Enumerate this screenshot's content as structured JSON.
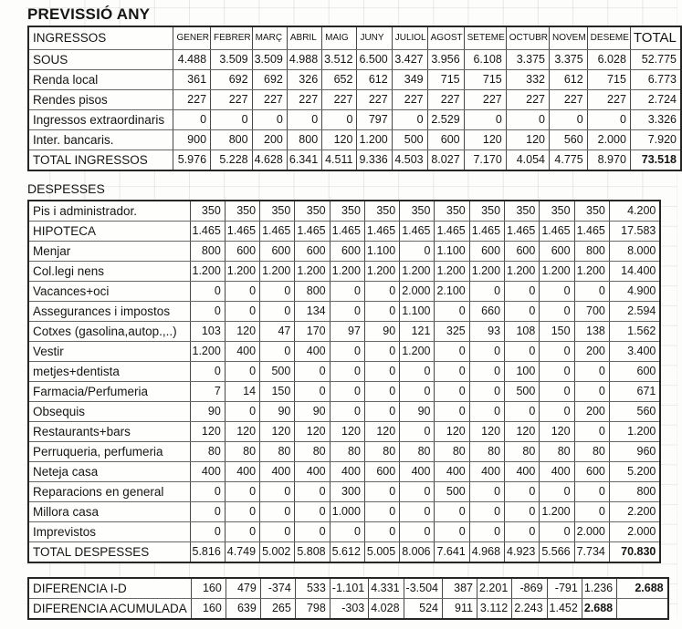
{
  "title": "PREVISSIÓ ANY",
  "columns": [
    "GENER",
    "FEBRER",
    "MARÇ",
    "ABRIL",
    "MAIG",
    "JUNY",
    "JULIOL",
    "AGOST",
    "SETEME",
    "OCTUBR",
    "NOVEM",
    "DESEME",
    "TOTAL"
  ],
  "ingressos": {
    "header_label": "INGRESSOS",
    "rows": [
      {
        "label": "SOUS",
        "values": [
          "4.488",
          "3.509",
          "3.509",
          "4.988",
          "3.512",
          "6.500",
          "3.427",
          "3.956",
          "6.108",
          "3.375",
          "3.375",
          "6.028",
          "52.775"
        ]
      },
      {
        "label": "Renda local",
        "values": [
          "361",
          "692",
          "692",
          "326",
          "652",
          "612",
          "349",
          "715",
          "715",
          "332",
          "612",
          "715",
          "6.773"
        ]
      },
      {
        "label": "Rendes pisos",
        "values": [
          "227",
          "227",
          "227",
          "227",
          "227",
          "227",
          "227",
          "227",
          "227",
          "227",
          "227",
          "227",
          "2.724"
        ]
      },
      {
        "label": "Ingressos extraordinaris",
        "values": [
          "0",
          "0",
          "0",
          "0",
          "0",
          "797",
          "0",
          "2.529",
          "0",
          "0",
          "0",
          "0",
          "3.326"
        ]
      },
      {
        "label": "Inter. bancaris.",
        "values": [
          "900",
          "800",
          "200",
          "800",
          "120",
          "1.200",
          "500",
          "600",
          "120",
          "120",
          "560",
          "2.000",
          "7.920"
        ]
      }
    ],
    "total": {
      "label": "TOTAL INGRESSOS",
      "values": [
        "5.976",
        "5.228",
        "4.628",
        "6.341",
        "4.511",
        "9.336",
        "4.503",
        "8.027",
        "7.170",
        "4.054",
        "4.775",
        "8.970",
        "73.518"
      ],
      "bold": [
        12
      ]
    }
  },
  "despesses": {
    "section_label": "DESPESSES",
    "rows": [
      {
        "label": "Pis i administrador.",
        "values": [
          "350",
          "350",
          "350",
          "350",
          "350",
          "350",
          "350",
          "350",
          "350",
          "350",
          "350",
          "350",
          "4.200"
        ]
      },
      {
        "label": "HIPOTECA",
        "values": [
          "1.465",
          "1.465",
          "1.465",
          "1.465",
          "1.465",
          "1.465",
          "1.465",
          "1.465",
          "1.465",
          "1.465",
          "1.465",
          "1.465",
          "17.583"
        ]
      },
      {
        "label": "Menjar",
        "values": [
          "800",
          "600",
          "600",
          "600",
          "600",
          "1.100",
          "0",
          "1.100",
          "600",
          "600",
          "600",
          "800",
          "8.000"
        ]
      },
      {
        "label": "Col.legi nens",
        "values": [
          "1.200",
          "1.200",
          "1.200",
          "1.200",
          "1.200",
          "1.200",
          "1.200",
          "1.200",
          "1.200",
          "1.200",
          "1.200",
          "1.200",
          "14.400"
        ]
      },
      {
        "label": "Vacances+oci",
        "values": [
          "0",
          "0",
          "0",
          "800",
          "0",
          "0",
          "2.000",
          "2.100",
          "0",
          "0",
          "0",
          "0",
          "4.900"
        ]
      },
      {
        "label": "Assegurances i impostos",
        "values": [
          "0",
          "0",
          "0",
          "134",
          "0",
          "0",
          "1.100",
          "0",
          "660",
          "0",
          "0",
          "700",
          "2.594"
        ]
      },
      {
        "label": "Cotxes (gasolina,autop.,..)",
        "values": [
          "103",
          "120",
          "47",
          "170",
          "97",
          "90",
          "121",
          "325",
          "93",
          "108",
          "150",
          "138",
          "1.562"
        ]
      },
      {
        "label": "Vestir",
        "values": [
          "1.200",
          "400",
          "0",
          "400",
          "0",
          "0",
          "1.200",
          "0",
          "0",
          "0",
          "0",
          "200",
          "3.400"
        ]
      },
      {
        "label": "metjes+dentista",
        "values": [
          "0",
          "0",
          "500",
          "0",
          "0",
          "0",
          "0",
          "0",
          "0",
          "100",
          "0",
          "0",
          "600"
        ]
      },
      {
        "label": "Farmacia/Perfumeria",
        "values": [
          "7",
          "14",
          "150",
          "0",
          "0",
          "0",
          "0",
          "0",
          "0",
          "500",
          "0",
          "0",
          "671"
        ]
      },
      {
        "label": "Obsequis",
        "values": [
          "90",
          "0",
          "90",
          "90",
          "0",
          "0",
          "90",
          "0",
          "0",
          "0",
          "0",
          "200",
          "560"
        ]
      },
      {
        "label": "Restaurants+bars",
        "values": [
          "120",
          "120",
          "120",
          "120",
          "120",
          "120",
          "0",
          "120",
          "120",
          "120",
          "120",
          "0",
          "1.200"
        ]
      },
      {
        "label": "Perruqueria, perfumeria",
        "values": [
          "80",
          "80",
          "80",
          "80",
          "80",
          "80",
          "80",
          "80",
          "80",
          "80",
          "80",
          "80",
          "960"
        ]
      },
      {
        "label": "Neteja casa",
        "values": [
          "400",
          "400",
          "400",
          "400",
          "400",
          "600",
          "400",
          "400",
          "400",
          "400",
          "400",
          "600",
          "5.200"
        ]
      },
      {
        "label": "Reparacions en general",
        "values": [
          "0",
          "0",
          "0",
          "0",
          "300",
          "0",
          "0",
          "500",
          "0",
          "0",
          "0",
          "0",
          "800"
        ]
      },
      {
        "label": "Millora casa",
        "values": [
          "0",
          "0",
          "0",
          "0",
          "1.000",
          "0",
          "0",
          "0",
          "0",
          "0",
          "1.200",
          "0",
          "2.200"
        ]
      },
      {
        "label": "Imprevistos",
        "values": [
          "0",
          "0",
          "0",
          "0",
          "0",
          "0",
          "0",
          "0",
          "0",
          "0",
          "0",
          "2.000",
          "2.000"
        ]
      }
    ],
    "total": {
      "label": "TOTAL DESPESSES",
      "values": [
        "5.816",
        "4.749",
        "5.002",
        "5.808",
        "5.612",
        "5.005",
        "8.006",
        "7.641",
        "4.968",
        "4.923",
        "5.566",
        "7.734",
        "70.830"
      ],
      "bold": [
        12
      ]
    }
  },
  "diferencia": {
    "rows": [
      {
        "label": "DIFERENCIA I-D",
        "values": [
          "160",
          "479",
          "-374",
          "533",
          "-1.101",
          "4.331",
          "-3.504",
          "387",
          "2.201",
          "-869",
          "-791",
          "1.236",
          "2.688"
        ],
        "bold": [
          12
        ]
      },
      {
        "label": "DIFERENCIA ACUMULADA",
        "values": [
          "160",
          "639",
          "265",
          "798",
          "-303",
          "4.028",
          "524",
          "911",
          "3.112",
          "2.243",
          "1.452",
          "2.688",
          ""
        ],
        "bold": [
          11
        ]
      }
    ]
  }
}
